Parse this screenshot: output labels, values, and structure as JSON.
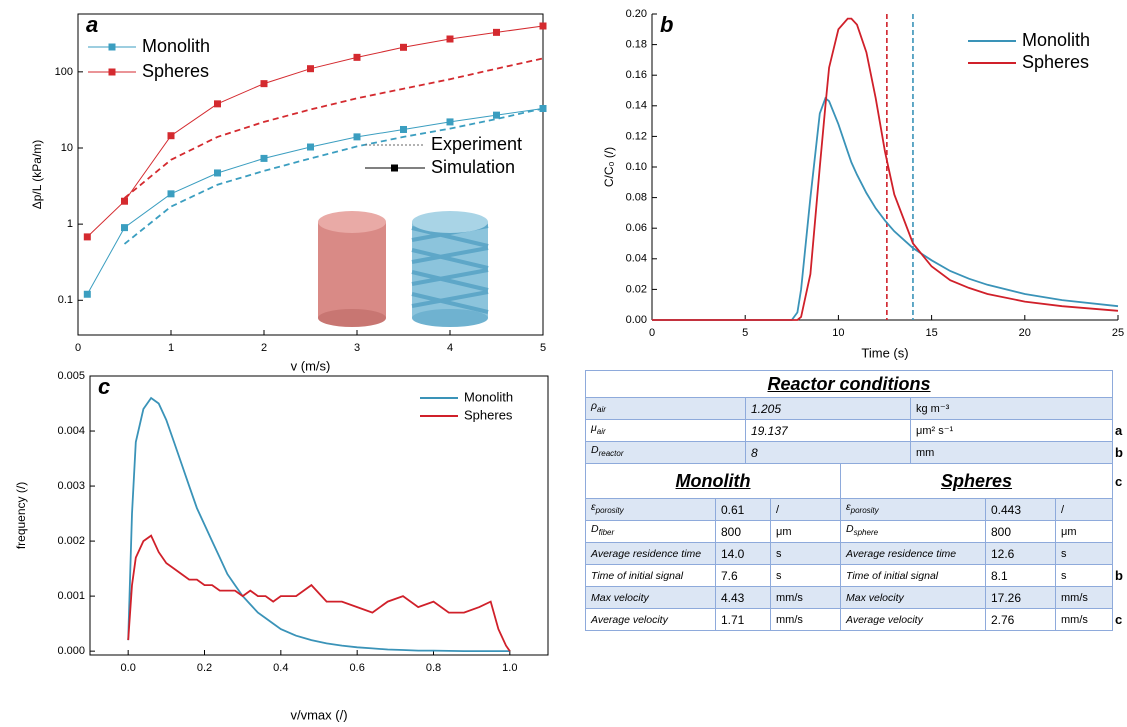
{
  "chart_data": [
    {
      "type": "line",
      "label": "a",
      "xlabel": "v (m/s)",
      "ylabel": "Δp/L (kPa/m)",
      "log_y": true,
      "xlim": [
        0,
        5
      ],
      "ylim": [
        0.035,
        575
      ],
      "xticks": [
        0,
        1,
        2,
        3,
        4,
        5
      ],
      "yticks": [
        0.1,
        1,
        10,
        100
      ],
      "markers": true,
      "x": [
        0.1,
        0.5,
        1,
        1.5,
        2,
        2.5,
        3,
        3.5,
        4,
        4.5,
        5
      ],
      "series": [
        {
          "name": "Monolith",
          "color": "#3b9ec0",
          "values": [
            0.12,
            0.9,
            2.5,
            4.7,
            7.3,
            10.3,
            14,
            17.5,
            22,
            27,
            33
          ],
          "experiment": [
            null,
            0.55,
            1.7,
            3.3,
            5,
            7.3,
            10.5,
            14,
            18,
            24,
            33
          ]
        },
        {
          "name": "Spheres",
          "color": "#d42a2f",
          "values": [
            0.68,
            2.0,
            14.5,
            38,
            70,
            110,
            155,
            210,
            270,
            330,
            400
          ],
          "experiment": [
            null,
            2.2,
            7,
            14,
            22,
            32,
            45,
            60,
            80,
            110,
            150
          ]
        }
      ],
      "style_legend": [
        "Experiment",
        "Simulation"
      ]
    },
    {
      "type": "line",
      "label": "b",
      "xlabel": "Time (s)",
      "ylabel": "C/C₀ (/)",
      "xlim": [
        0,
        25
      ],
      "ylim": [
        0,
        0.2
      ],
      "xticks": [
        0,
        5,
        10,
        15,
        20,
        25
      ],
      "yticks": [
        {
          "value": 0,
          "label": "0.00"
        },
        {
          "value": 0.02,
          "label": "0.02"
        },
        {
          "value": 0.04,
          "label": "0.04"
        },
        {
          "value": 0.06,
          "label": "0.06"
        },
        {
          "value": 0.08,
          "label": "0.08"
        },
        {
          "value": 0.1,
          "label": "0.10"
        },
        {
          "value": 0.12,
          "label": "0.12"
        },
        {
          "value": 0.14,
          "label": "0.14"
        },
        {
          "value": 0.16,
          "label": "0.16"
        },
        {
          "value": 0.18,
          "label": "0.18"
        },
        {
          "value": 0.2,
          "label": "0.20"
        }
      ],
      "x": [
        0,
        7.5,
        7.8,
        8,
        8.5,
        9,
        9.3,
        9.5,
        10,
        10.5,
        10.7,
        11,
        11.5,
        12,
        12.5,
        13,
        14,
        15,
        16,
        17,
        18,
        20,
        22,
        25
      ],
      "series": [
        {
          "name": "Monolith",
          "color": "#3a93b8",
          "values": [
            0,
            0,
            0.005,
            0.02,
            0.08,
            0.135,
            0.145,
            0.143,
            0.128,
            0.11,
            0.103,
            0.095,
            0.083,
            0.073,
            0.065,
            0.058,
            0.047,
            0.039,
            0.032,
            0.027,
            0.023,
            0.017,
            0.013,
            0.009
          ]
        },
        {
          "name": "Spheres",
          "color": "#d0202a",
          "values": [
            0,
            0,
            0,
            0.002,
            0.03,
            0.1,
            0.14,
            0.165,
            0.19,
            0.197,
            0.197,
            0.193,
            0.175,
            0.145,
            0.11,
            0.082,
            0.05,
            0.035,
            0.026,
            0.021,
            0.017,
            0.012,
            0.009,
            0.006
          ]
        }
      ],
      "vlines": [
        {
          "x": 12.6,
          "color": "#d0202a"
        },
        {
          "x": 14.0,
          "color": "#3a93b8"
        }
      ]
    },
    {
      "type": "line",
      "label": "c",
      "xlabel": "v/vmax (/)",
      "ylabel": "frequency (/)",
      "xlim": [
        -0.1,
        1.1
      ],
      "ylim": [
        -7e-05,
        0.005
      ],
      "xticks": [
        {
          "value": 0,
          "label": "0.0"
        },
        {
          "value": 0.2,
          "label": "0.2"
        },
        {
          "value": 0.4,
          "label": "0.4"
        },
        {
          "value": 0.6,
          "label": "0.6"
        },
        {
          "value": 0.8,
          "label": "0.8"
        },
        {
          "value": 1.0,
          "label": "1.0"
        }
      ],
      "yticks": [
        {
          "value": 0,
          "label": "0.000"
        },
        {
          "value": 0.001,
          "label": "0.001"
        },
        {
          "value": 0.002,
          "label": "0.002"
        },
        {
          "value": 0.003,
          "label": "0.003"
        },
        {
          "value": 0.004,
          "label": "0.004"
        },
        {
          "value": 0.005,
          "label": "0.005"
        }
      ],
      "x": [
        0,
        0.01,
        0.02,
        0.04,
        0.06,
        0.08,
        0.1,
        0.12,
        0.14,
        0.16,
        0.18,
        0.2,
        0.22,
        0.24,
        0.26,
        0.28,
        0.3,
        0.32,
        0.34,
        0.36,
        0.38,
        0.4,
        0.44,
        0.48,
        0.52,
        0.56,
        0.6,
        0.64,
        0.68,
        0.72,
        0.76,
        0.8,
        0.84,
        0.88,
        0.92,
        0.95,
        0.97,
        0.99,
        1.0
      ],
      "series": [
        {
          "name": "Monolith",
          "color": "#3a93b8",
          "values": [
            0.0002,
            0.0025,
            0.0038,
            0.0044,
            0.0046,
            0.0045,
            0.0042,
            0.0038,
            0.0034,
            0.003,
            0.0026,
            0.0023,
            0.002,
            0.0017,
            0.0014,
            0.0012,
            0.001,
            0.00085,
            0.0007,
            0.0006,
            0.0005,
            0.0004,
            0.00028,
            0.0002,
            0.00014,
            0.0001,
            7e-05,
            5e-05,
            3e-05,
            2e-05,
            1e-05,
            1e-05,
            5e-06,
            0,
            0,
            0,
            0,
            0,
            0
          ]
        },
        {
          "name": "Spheres",
          "color": "#d0202a",
          "values": [
            0.0002,
            0.0012,
            0.0017,
            0.002,
            0.0021,
            0.0018,
            0.0016,
            0.0015,
            0.0014,
            0.0013,
            0.0013,
            0.0012,
            0.0012,
            0.0011,
            0.0011,
            0.0011,
            0.001,
            0.0011,
            0.001,
            0.001,
            0.0009,
            0.001,
            0.001,
            0.0012,
            0.0009,
            0.0009,
            0.0008,
            0.0007,
            0.0009,
            0.001,
            0.0008,
            0.0009,
            0.0007,
            0.0007,
            0.0008,
            0.0009,
            0.0004,
            0.0001,
            0
          ]
        }
      ]
    }
  ],
  "table": {
    "title": "Reactor conditions",
    "conditions": [
      {
        "label": "ρ",
        "sub": "air",
        "value": "1.205",
        "unit": "kg m⁻³"
      },
      {
        "label": "μ",
        "sub": "air",
        "value": "19.137",
        "unit": "μm² s⁻¹"
      },
      {
        "label": "D",
        "sub": "reactor",
        "value": "8",
        "unit": "mm"
      }
    ],
    "monolith": {
      "title": "Monolith",
      "rows": [
        {
          "label": "ε",
          "sub": "porosity",
          "value": "0.61",
          "unit": "/"
        },
        {
          "label": "D",
          "sub": "fiber",
          "value": "800",
          "unit": "μm"
        },
        {
          "label": "Average residence time",
          "value": "14.0",
          "unit": "s"
        },
        {
          "label": "Time of initial signal",
          "value": "7.6",
          "unit": "s"
        },
        {
          "label": "Max velocity",
          "value": "4.43",
          "unit": "mm/s"
        },
        {
          "label": "Average velocity",
          "value": "1.71",
          "unit": "mm/s"
        }
      ]
    },
    "spheres": {
      "title": "Spheres",
      "rows": [
        {
          "label": "ε",
          "sub": "porosity",
          "value": "0.443",
          "unit": "/"
        },
        {
          "label": "D",
          "sub": "sphere",
          "value": "800",
          "unit": "μm"
        },
        {
          "label": "Average residence time",
          "value": "12.6",
          "unit": "s"
        },
        {
          "label": "Time of initial signal",
          "value": "8.1",
          "unit": "s"
        },
        {
          "label": "Max velocity",
          "value": "17.26",
          "unit": "mm/s"
        },
        {
          "label": "Average velocity",
          "value": "2.76",
          "unit": "mm/s"
        }
      ]
    },
    "side_labels": [
      "a",
      "b",
      "c",
      "b",
      "c"
    ]
  }
}
